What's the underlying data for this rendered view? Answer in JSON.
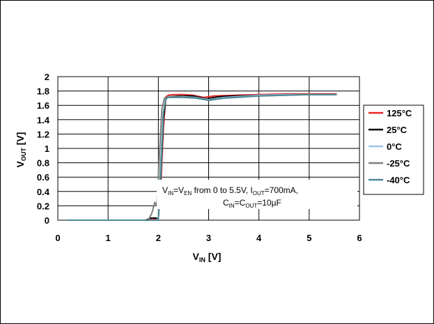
{
  "chart_data": {
    "type": "line",
    "xlabel": "V_IN [V]",
    "ylabel": "V_OUT [V]",
    "xlim": [
      0,
      6
    ],
    "ylim": [
      0,
      2
    ],
    "xticks": [
      "0",
      "1",
      "2",
      "3",
      "4",
      "5",
      "6"
    ],
    "yticks": [
      "0",
      "0.2",
      "0.4",
      "0.6",
      "0.8",
      "1",
      "1.2",
      "1.4",
      "1.6",
      "1.8",
      "2"
    ],
    "grid": true,
    "legend_position": "right",
    "annotation_line1": "V_IN=V_EN from 0 to 5.5V, I_OUT=700mA,",
    "annotation_line2": "C_IN=C_OUT=10µF",
    "series": [
      {
        "name": "125°C",
        "color": "#e8231f",
        "x": [
          0.2,
          1.7,
          1.9,
          2.0,
          2.05,
          2.1,
          2.15,
          2.2,
          2.3,
          2.5,
          2.7,
          2.9,
          3.1,
          3.5,
          4.0,
          4.5,
          5.0,
          5.55
        ],
        "y": [
          0,
          0,
          0.01,
          0.02,
          0.5,
          1.3,
          1.72,
          1.74,
          1.75,
          1.75,
          1.74,
          1.71,
          1.73,
          1.74,
          1.75,
          1.76,
          1.76,
          1.76
        ]
      },
      {
        "name": "25°C",
        "color": "#000000",
        "x": [
          0.2,
          1.75,
          1.85,
          1.95,
          2.0,
          2.05,
          2.1,
          2.15,
          2.2,
          2.4,
          2.7,
          2.95,
          3.2,
          3.5,
          4.0,
          4.5,
          5.0,
          5.55
        ],
        "y": [
          0,
          0,
          0.03,
          0.03,
          0.02,
          0.6,
          1.4,
          1.7,
          1.72,
          1.73,
          1.73,
          1.69,
          1.72,
          1.73,
          1.74,
          1.75,
          1.75,
          1.75
        ]
      },
      {
        "name": "0°C",
        "color": "#9cc3e6",
        "x": [
          0.2,
          1.8,
          1.95,
          2.0,
          2.05,
          2.1,
          2.15,
          2.2,
          2.5,
          2.75,
          3.0,
          3.3,
          4.0,
          4.5,
          5.0,
          5.55
        ],
        "y": [
          0,
          0,
          0.0,
          0.02,
          0.7,
          1.5,
          1.7,
          1.72,
          1.72,
          1.71,
          1.68,
          1.71,
          1.74,
          1.75,
          1.75,
          1.75
        ]
      },
      {
        "name": "-25°C",
        "color": "#7f7f7f",
        "x": [
          0.2,
          1.7,
          1.8,
          1.87,
          1.93,
          1.97,
          2.02,
          2.07,
          2.12,
          2.17,
          2.3,
          2.6,
          2.8,
          3.0,
          3.3,
          4.0,
          4.5,
          5.0,
          5.55
        ],
        "y": [
          0,
          0,
          0.0,
          0.1,
          0.25,
          0.2,
          0.9,
          1.55,
          1.7,
          1.71,
          1.72,
          1.71,
          1.7,
          1.67,
          1.7,
          1.73,
          1.74,
          1.75,
          1.75
        ]
      },
      {
        "name": "-40°C",
        "color": "#4a8a96",
        "x": [
          0.2,
          1.85,
          1.95,
          2.0,
          2.05,
          2.1,
          2.15,
          2.2,
          2.5,
          2.75,
          3.0,
          3.3,
          4.0,
          4.5,
          5.0,
          5.55
        ],
        "y": [
          0,
          0,
          0.0,
          0.0,
          0.8,
          1.5,
          1.69,
          1.71,
          1.71,
          1.7,
          1.67,
          1.7,
          1.73,
          1.74,
          1.75,
          1.75
        ]
      }
    ]
  }
}
